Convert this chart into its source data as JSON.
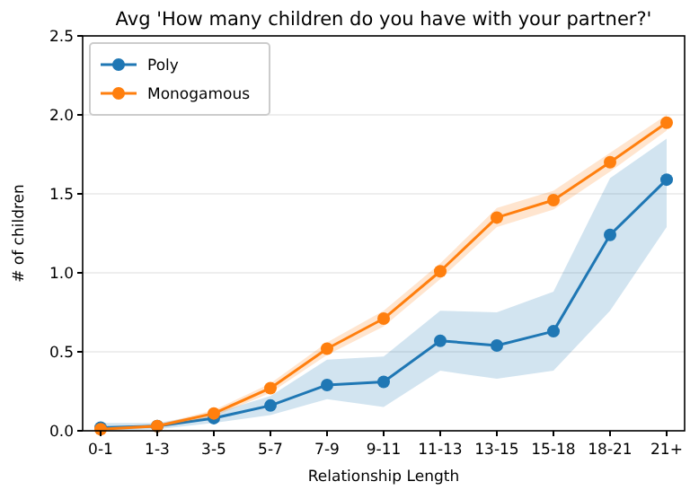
{
  "chart_data": {
    "type": "line",
    "title": "Avg 'How many children do you have with your partner?'",
    "xlabel": "Relationship Length",
    "ylabel": "# of children",
    "categories": [
      "0-1",
      "1-3",
      "3-5",
      "5-7",
      "7-9",
      "9-11",
      "11-13",
      "13-15",
      "15-18",
      "18-21",
      "21+"
    ],
    "series": [
      {
        "name": "Poly",
        "color": "#1f77b4",
        "values": [
          0.02,
          0.03,
          0.08,
          0.16,
          0.29,
          0.31,
          0.57,
          0.54,
          0.63,
          1.24,
          1.59
        ],
        "lower": [
          0,
          0.01,
          0.05,
          0.1,
          0.2,
          0.15,
          0.38,
          0.33,
          0.38,
          0.76,
          1.29
        ],
        "upper": [
          0.05,
          0.05,
          0.11,
          0.22,
          0.45,
          0.47,
          0.76,
          0.75,
          0.88,
          1.6,
          1.85
        ]
      },
      {
        "name": "Monogamous",
        "color": "#ff7f0e",
        "values": [
          0.01,
          0.03,
          0.11,
          0.27,
          0.52,
          0.71,
          1.01,
          1.35,
          1.46,
          1.7,
          1.95
        ],
        "lower": [
          0,
          0.02,
          0.09,
          0.24,
          0.48,
          0.66,
          0.96,
          1.29,
          1.4,
          1.64,
          1.9
        ],
        "upper": [
          0.02,
          0.04,
          0.13,
          0.3,
          0.56,
          0.76,
          1.06,
          1.41,
          1.52,
          1.76,
          2.0
        ]
      }
    ],
    "ylim": [
      0,
      2.5
    ],
    "yticks": [
      {
        "value": 0,
        "label": "0.0"
      },
      {
        "value": 0.5,
        "label": "0.5"
      },
      {
        "value": 1,
        "label": "1.0"
      },
      {
        "value": 1.5,
        "label": "1.5"
      },
      {
        "value": 2,
        "label": "2.0"
      },
      {
        "value": 2.5,
        "label": "2.5"
      }
    ],
    "grid": "y",
    "legend": "top left",
    "marker": "circle",
    "line_style": "solid"
  }
}
